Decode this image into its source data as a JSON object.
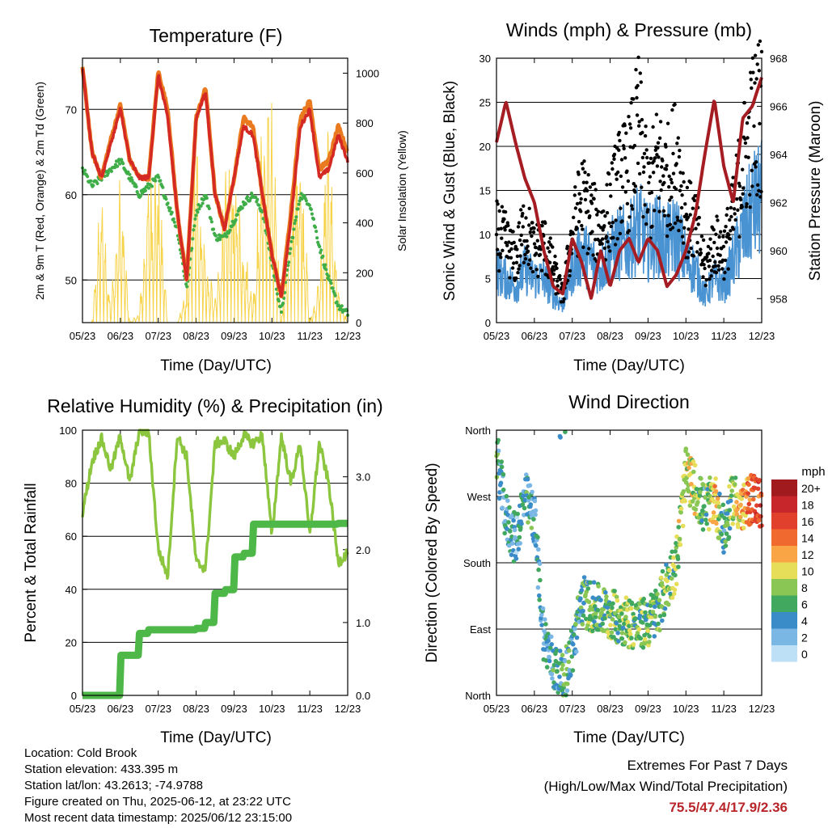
{
  "colors": {
    "temp2m": "#ea7a20",
    "temp9m": "#d42a23",
    "dewpoint": "#3fae49",
    "solar": "#f7d349",
    "gust": "#000000",
    "wind": "#4a93d2",
    "pressure": "#a51d22",
    "rh": "#8cc63f",
    "precip": "#4db848",
    "extremes": "#b8262b"
  },
  "time_ticks": [
    "05/23",
    "06/23",
    "07/23",
    "08/23",
    "09/23",
    "10/23",
    "11/23",
    "12/23"
  ],
  "time_xlabel": "Time (Day/UTC)",
  "chart_data": [
    {
      "type": "line",
      "title": "Temperature (F)",
      "xlabel": "Time (Day/UTC)",
      "ylabel": "2m & 9m T (Red, Orange) & 2m Td (Green)",
      "y2label": "Solar Insolation (Yellow)",
      "ylim": [
        45,
        76
      ],
      "y2lim": [
        0,
        1060
      ],
      "yticks": [
        50,
        60,
        70
      ],
      "y2ticks": [
        0,
        200,
        400,
        600,
        800,
        1000
      ],
      "x": [
        0,
        0.25,
        0.5,
        0.75,
        1,
        1.25,
        1.5,
        1.75,
        2,
        2.25,
        2.5,
        2.75,
        3,
        3.25,
        3.5,
        3.75,
        4,
        4.25,
        4.5,
        4.75,
        5,
        5.25,
        5.5,
        5.75,
        6,
        6.25,
        6.5,
        6.75,
        7
      ],
      "series": [
        {
          "key": "t9m",
          "values": [
            75,
            65,
            62,
            66,
            70,
            64,
            62,
            62,
            74,
            69,
            58,
            50,
            69,
            72,
            60,
            56,
            62,
            68,
            67,
            60,
            53,
            48,
            57,
            68,
            70,
            62,
            63,
            67,
            64
          ]
        },
        {
          "key": "t2m",
          "values": [
            75,
            65,
            62,
            66.5,
            70.5,
            64,
            62,
            62,
            74.5,
            70,
            58,
            50,
            69,
            72.5,
            60,
            56,
            62,
            69,
            68,
            60,
            53,
            48,
            58,
            69,
            71,
            63,
            64,
            68,
            65
          ]
        },
        {
          "key": "td",
          "values": [
            63,
            61,
            62,
            63,
            64,
            62,
            60,
            61,
            62,
            59,
            56,
            49,
            58,
            60,
            55,
            55,
            57,
            59,
            60,
            58,
            52,
            46,
            54,
            60,
            59,
            54,
            50,
            47,
            46
          ]
        },
        {
          "key": "solar",
          "values": [
            0,
            0,
            600,
            100,
            650,
            0,
            50,
            650,
            700,
            0,
            0,
            150,
            850,
            300,
            100,
            600,
            700,
            400,
            100,
            900,
            1000,
            0,
            600,
            900,
            0,
            200,
            900,
            150,
            0
          ]
        }
      ]
    },
    {
      "type": "scatter",
      "title": "Winds (mph) & Pressure (mb)",
      "xlabel": "Time (Day/UTC)",
      "ylabel": "Sonic Wind & Gust (Blue, Black)",
      "y2label": "Station Pressure (Maroon)",
      "ylim": [
        0,
        30
      ],
      "y2lim": [
        957,
        968
      ],
      "yticks": [
        0,
        5,
        10,
        15,
        20,
        25,
        30
      ],
      "y2ticks": [
        958,
        960,
        962,
        964,
        966,
        968
      ],
      "x": [
        0,
        0.25,
        0.5,
        0.75,
        1,
        1.25,
        1.5,
        1.75,
        2,
        2.25,
        2.5,
        2.75,
        3,
        3.25,
        3.5,
        3.75,
        4,
        4.25,
        4.5,
        4.75,
        5,
        5.25,
        5.5,
        5.75,
        6,
        6.25,
        6.5,
        6.75,
        7
      ],
      "series": [
        {
          "key": "gust",
          "values": [
            10,
            9,
            7,
            11,
            8,
            9,
            6,
            3,
            10,
            14,
            12,
            10,
            13,
            16,
            17,
            22,
            14,
            18,
            16,
            19,
            12,
            11,
            6,
            9,
            8,
            12,
            18,
            22,
            24
          ]
        },
        {
          "key": "wind",
          "values": [
            6,
            5,
            4,
            6,
            5,
            5,
            3,
            2,
            6,
            8,
            7,
            6,
            8,
            9,
            9,
            11,
            9,
            10,
            9,
            10,
            7,
            6,
            3,
            5,
            4,
            7,
            10,
            13,
            14
          ]
        },
        {
          "key": "pressure",
          "values": [
            964.5,
            966.2,
            964.5,
            963,
            962,
            960,
            958.5,
            958.2,
            960.5,
            959.5,
            958,
            960,
            958.5,
            960,
            960.5,
            959.5,
            960.5,
            960,
            958.5,
            959,
            960,
            961.5,
            964,
            966.3,
            963.5,
            962,
            965.5,
            966,
            967.2
          ]
        }
      ]
    },
    {
      "type": "line",
      "title": "Relative Humidity (%) & Precipitation (in)",
      "xlabel": "Time (Day/UTC)",
      "ylabel": "Percent & Total Rainfall",
      "ylim": [
        0,
        100
      ],
      "y2lim": [
        0,
        3.64
      ],
      "yticks": [
        0,
        20,
        40,
        60,
        80,
        100
      ],
      "y2ticks": [
        0.0,
        1.0,
        2.0,
        3.0
      ],
      "y2ticklabels": [
        "0.0",
        "1.0",
        "2.0",
        "3.0"
      ],
      "x": [
        0,
        0.25,
        0.5,
        0.75,
        1,
        1.25,
        1.5,
        1.75,
        2,
        2.25,
        2.5,
        2.75,
        3,
        3.25,
        3.5,
        3.75,
        4,
        4.25,
        4.5,
        4.75,
        5,
        5.25,
        5.5,
        5.75,
        6,
        6.25,
        6.5,
        6.75,
        7
      ],
      "series": [
        {
          "key": "rh",
          "values": [
            69,
            88,
            97,
            85,
            98,
            80,
            100,
            99,
            55,
            45,
            98,
            90,
            50,
            48,
            95,
            96,
            90,
            98,
            95,
            98,
            60,
            98,
            80,
            95,
            60,
            95,
            80,
            50,
            54
          ]
        },
        {
          "key": "precip",
          "values": [
            0,
            0,
            0,
            0,
            0.55,
            0.55,
            0.85,
            0.9,
            0.9,
            0.9,
            0.9,
            0.9,
            0.92,
            1.0,
            1.4,
            1.45,
            1.9,
            1.95,
            2.35,
            2.35,
            2.35,
            2.35,
            2.35,
            2.35,
            2.35,
            2.35,
            2.35,
            2.36,
            2.36
          ]
        }
      ]
    },
    {
      "type": "scatter",
      "title": "Wind Direction",
      "xlabel": "Time (Day/UTC)",
      "ylabel": "Direction (Colored By Speed)",
      "ylim": [
        0,
        360
      ],
      "yticks": [
        0,
        90,
        180,
        270,
        360
      ],
      "yticklabels": [
        "North",
        "East",
        "South",
        "West",
        "North"
      ],
      "x": [
        0,
        0.25,
        0.5,
        0.75,
        1,
        1.25,
        1.5,
        1.75,
        2,
        2.25,
        2.5,
        2.75,
        3,
        3.25,
        3.5,
        3.75,
        4,
        4.25,
        4.5,
        4.75,
        5,
        5.25,
        5.5,
        5.75,
        6,
        6.25,
        6.5,
        6.75,
        7
      ],
      "series": [
        {
          "key": "direction",
          "values": [
            330,
            240,
            210,
            270,
            240,
            80,
            40,
            20,
            60,
            130,
            120,
            115,
            110,
            105,
            100,
            95,
            100,
            115,
            150,
            180,
            300,
            280,
            250,
            270,
            220,
            270,
            250,
            270,
            260
          ]
        },
        {
          "key": "speed",
          "values": [
            5,
            4,
            3,
            5,
            4,
            4,
            5,
            6,
            4,
            6,
            7,
            6,
            7,
            7,
            8,
            7,
            7,
            6,
            7,
            8,
            10,
            9,
            5,
            12,
            4,
            9,
            12,
            15,
            16
          ]
        }
      ],
      "colorbar": {
        "title": "mph",
        "labels": [
          "20+",
          "18",
          "16",
          "14",
          "12",
          "10",
          "8",
          "6",
          "4",
          "2",
          "0"
        ],
        "colors": [
          "#a11b1e",
          "#c7262a",
          "#e0402c",
          "#f06a30",
          "#f9a546",
          "#e6de58",
          "#89c653",
          "#41a85f",
          "#3a8cc9",
          "#7ab7e4",
          "#bde0f6"
        ]
      }
    }
  ],
  "info": {
    "location": "Location: Cold Brook",
    "elevation": "Station elevation: 433.395 m",
    "latlon": "Station lat/lon: 43.2613; -74.9788",
    "created": "Figure created on Thu, 2025-06-12, at 23:22 UTC",
    "recent": "Most recent data timestamp: 2025/06/12 23:15:00"
  },
  "extremes": {
    "title": "Extremes For Past 7 Days",
    "subtitle": "(High/Low/Max Wind/Total Precipitation)",
    "values": "75.5/47.4/17.9/2.36"
  }
}
